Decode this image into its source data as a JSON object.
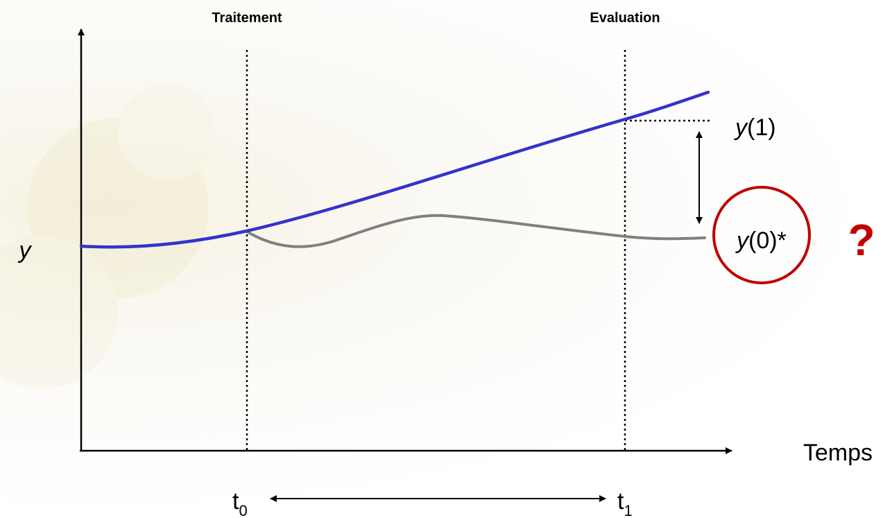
{
  "labels": {
    "treatment": "Traitement",
    "evaluation": "Evaluation",
    "y_axis": "y",
    "x_axis": "Temps",
    "y1_var": "y",
    "y1_arg": "(1)",
    "y0_var": "y",
    "y0_arg": "(0)*",
    "question": "?",
    "t0_base": "t",
    "t0_sub": "0",
    "t1_base": "t",
    "t1_sub": "1"
  },
  "colors": {
    "treated_line": "#3333cc",
    "counterfactual_line": "#808080",
    "highlight": "#c00000"
  }
}
